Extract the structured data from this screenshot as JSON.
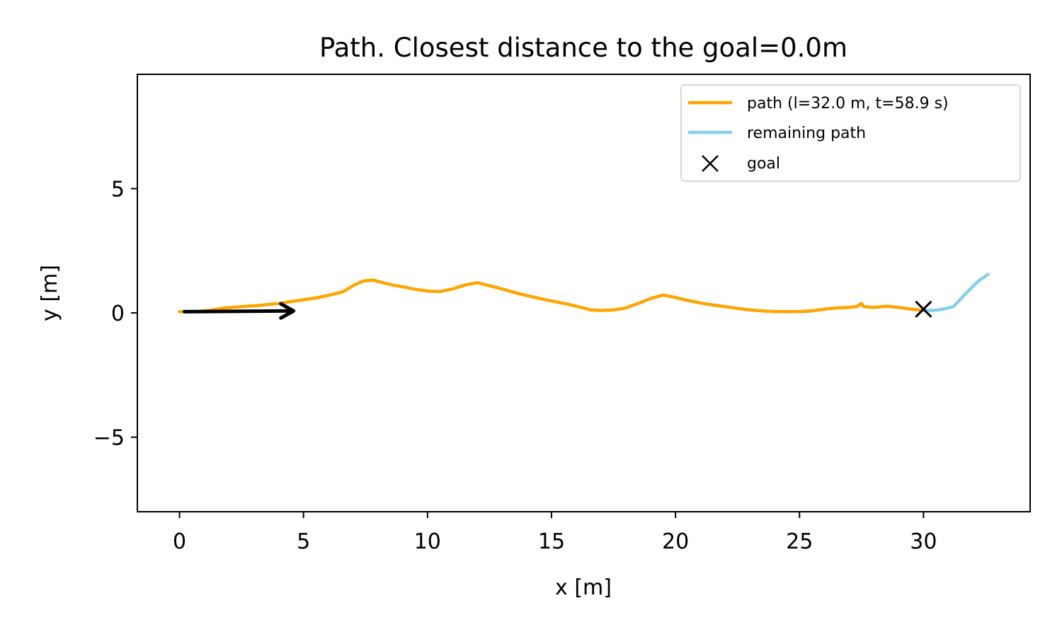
{
  "chart_data": {
    "type": "line",
    "title": "Path. Closest distance to the goal=0.0m",
    "xlabel": "x [m]",
    "ylabel": "y [m]",
    "xlim": [
      -1.7,
      34.3
    ],
    "ylim": [
      -8.0,
      9.6
    ],
    "xticks": [
      0,
      5,
      10,
      15,
      20,
      25,
      30
    ],
    "yticks": [
      -5,
      0,
      5
    ],
    "xtick_labels": [
      "0",
      "5",
      "10",
      "15",
      "20",
      "25",
      "30"
    ],
    "ytick_labels": [
      "−5",
      "0",
      "5"
    ],
    "grid": false,
    "legend_position": "top-right",
    "series": [
      {
        "name": "path (l=32.0 m, t=58.9 s)",
        "color": "#FFA500",
        "x": [
          0.0,
          0.3,
          0.7,
          1.2,
          1.8,
          2.5,
          3.2,
          4.0,
          4.8,
          5.5,
          6.2,
          6.6,
          7.0,
          7.4,
          7.8,
          8.2,
          8.6,
          9.0,
          9.5,
          10.0,
          10.5,
          11.0,
          11.5,
          12.0,
          12.4,
          12.8,
          13.3,
          13.8,
          14.3,
          14.8,
          15.3,
          15.8,
          16.2,
          16.6,
          17.0,
          17.5,
          18.0,
          18.5,
          19.0,
          19.5,
          20.0,
          20.5,
          21.0,
          21.5,
          22.0,
          22.5,
          23.0,
          23.5,
          24.0,
          24.5,
          25.0,
          25.5,
          26.0,
          26.5,
          27.0,
          27.3,
          27.5,
          27.6,
          28.0,
          28.5,
          29.0,
          29.5,
          30.0
        ],
        "y": [
          0.05,
          0.05,
          0.05,
          0.1,
          0.2,
          0.25,
          0.3,
          0.38,
          0.5,
          0.6,
          0.75,
          0.85,
          1.1,
          1.28,
          1.32,
          1.22,
          1.12,
          1.05,
          0.95,
          0.88,
          0.86,
          0.96,
          1.12,
          1.22,
          1.12,
          1.02,
          0.88,
          0.75,
          0.63,
          0.52,
          0.42,
          0.32,
          0.22,
          0.12,
          0.1,
          0.12,
          0.2,
          0.38,
          0.58,
          0.72,
          0.62,
          0.5,
          0.4,
          0.32,
          0.25,
          0.18,
          0.12,
          0.08,
          0.05,
          0.05,
          0.05,
          0.08,
          0.15,
          0.2,
          0.22,
          0.25,
          0.38,
          0.25,
          0.22,
          0.27,
          0.22,
          0.15,
          0.1
        ]
      },
      {
        "name": "remaining path",
        "color": "#87CEEB",
        "x": [
          30.0,
          30.3,
          30.6,
          30.9,
          31.2,
          31.4,
          31.7,
          32.0,
          32.3,
          32.6
        ],
        "y": [
          0.1,
          0.1,
          0.12,
          0.18,
          0.25,
          0.45,
          0.78,
          1.08,
          1.35,
          1.55
        ]
      }
    ],
    "goal": {
      "name": "goal",
      "x": 30.0,
      "y": 0.15,
      "marker": "x",
      "color": "#000000"
    },
    "arrow": {
      "x_start": 0.2,
      "y_start": 0.05,
      "x_end": 4.6,
      "y_end": 0.08,
      "color": "#000000"
    }
  }
}
